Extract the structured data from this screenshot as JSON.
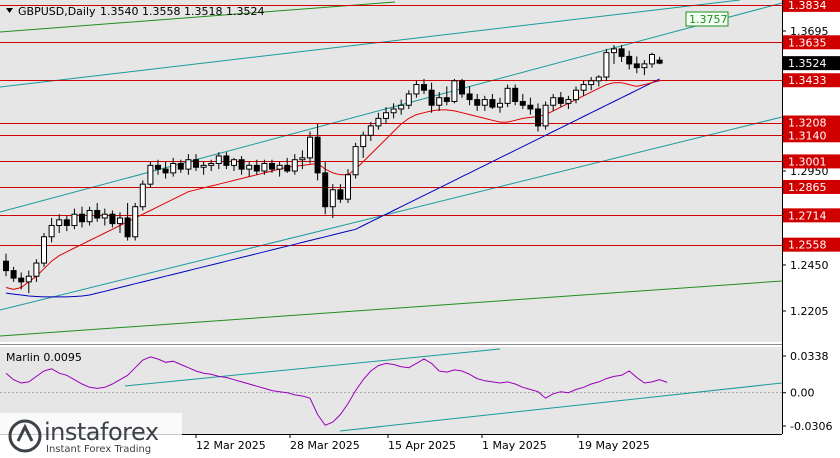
{
  "header": {
    "symbol": "GBPUSD,Daily",
    "ohlc": "1.3540 1.3558 1.3518 1.3524"
  },
  "indicator": {
    "label": "Marlin 0.0095",
    "levels": [
      "0.0338",
      "0.00",
      "-0.0306"
    ]
  },
  "price_axis": {
    "labels": [
      "1.3695",
      "1.2950",
      "1.2450",
      "1.2205"
    ],
    "current_price": "1.3524"
  },
  "levels": [
    {
      "price": "1.3834",
      "color": "#d10000"
    },
    {
      "price": "1.3635",
      "color": "#d10000"
    },
    {
      "price": "1.3433",
      "color": "#d10000"
    },
    {
      "price": "1.3208",
      "color": "#d10000"
    },
    {
      "price": "1.3140",
      "color": "#d10000"
    },
    {
      "price": "1.3001",
      "color": "#d10000"
    },
    {
      "price": "1.2865",
      "color": "#d10000"
    },
    {
      "price": "1.2714",
      "color": "#d10000"
    },
    {
      "price": "1.2558",
      "color": "#d10000"
    }
  ],
  "channel_target": "1.3757",
  "date_axis": [
    "12 Mar 2025",
    "28 Mar 2025",
    "15 Apr 2025",
    "1 May 2025",
    "19 May 2025"
  ],
  "branding": {
    "logo": "instaforex",
    "tagline": "Instant Forex Trading"
  },
  "colors": {
    "background": "#e6e6e6",
    "bull": "#ffffff",
    "bear": "#000000",
    "red_ma": "#e00000",
    "blue_ma": "#0000c0",
    "channel": "#1a9a9a",
    "green_line": "#1f8f1f",
    "oscillator": "#9900bb",
    "level": "#d10000"
  },
  "chart_data": {
    "type": "candlestick",
    "ylim": [
      1.204,
      1.386
    ],
    "price_axis_labels": [
      1.3695,
      1.295,
      1.245,
      1.2205
    ],
    "levels": [
      1.3834,
      1.3635,
      1.3433,
      1.3208,
      1.314,
      1.3001,
      1.2865,
      1.2714,
      1.2558
    ],
    "target": 1.3757,
    "current": 1.3524,
    "candles": [
      [
        1.247,
        1.251,
        1.239,
        1.242
      ],
      [
        1.242,
        1.244,
        1.236,
        1.238
      ],
      [
        1.238,
        1.241,
        1.232,
        1.236
      ],
      [
        1.236,
        1.242,
        1.23,
        1.239
      ],
      [
        1.239,
        1.248,
        1.236,
        1.246
      ],
      [
        1.246,
        1.262,
        1.244,
        1.26
      ],
      [
        1.26,
        1.27,
        1.257,
        1.266
      ],
      [
        1.266,
        1.272,
        1.262,
        1.269
      ],
      [
        1.269,
        1.271,
        1.263,
        1.266
      ],
      [
        1.266,
        1.275,
        1.264,
        1.272
      ],
      [
        1.272,
        1.276,
        1.265,
        1.268
      ],
      [
        1.268,
        1.276,
        1.266,
        1.274
      ],
      [
        1.274,
        1.278,
        1.268,
        1.27
      ],
      [
        1.27,
        1.275,
        1.266,
        1.272
      ],
      [
        1.272,
        1.274,
        1.265,
        1.267
      ],
      [
        1.267,
        1.273,
        1.262,
        1.27
      ],
      [
        1.27,
        1.278,
        1.258,
        1.26
      ],
      [
        1.26,
        1.278,
        1.258,
        1.276
      ],
      [
        1.276,
        1.29,
        1.274,
        1.288
      ],
      [
        1.288,
        1.3,
        1.286,
        1.298
      ],
      [
        1.298,
        1.301,
        1.293,
        1.296
      ],
      [
        1.296,
        1.3,
        1.291,
        1.294
      ],
      [
        1.294,
        1.302,
        1.292,
        1.299
      ],
      [
        1.299,
        1.301,
        1.294,
        1.296
      ],
      [
        1.296,
        1.304,
        1.293,
        1.301
      ],
      [
        1.301,
        1.304,
        1.295,
        1.297
      ],
      [
        1.297,
        1.3,
        1.293,
        1.298
      ],
      [
        1.298,
        1.301,
        1.295,
        1.299
      ],
      [
        1.299,
        1.305,
        1.296,
        1.303
      ],
      [
        1.303,
        1.305,
        1.296,
        1.298
      ],
      [
        1.298,
        1.302,
        1.295,
        1.301
      ],
      [
        1.301,
        1.303,
        1.293,
        1.296
      ],
      [
        1.296,
        1.3,
        1.292,
        1.298
      ],
      [
        1.298,
        1.301,
        1.293,
        1.295
      ],
      [
        1.295,
        1.301,
        1.293,
        1.299
      ],
      [
        1.299,
        1.301,
        1.294,
        1.296
      ],
      [
        1.296,
        1.3,
        1.292,
        1.298
      ],
      [
        1.298,
        1.302,
        1.294,
        1.295
      ],
      [
        1.295,
        1.304,
        1.293,
        1.301
      ],
      [
        1.301,
        1.306,
        1.296,
        1.302
      ],
      [
        1.302,
        1.316,
        1.299,
        1.313
      ],
      [
        1.313,
        1.32,
        1.29,
        1.294
      ],
      [
        1.294,
        1.3,
        1.272,
        1.276
      ],
      [
        1.276,
        1.288,
        1.27,
        1.285
      ],
      [
        1.285,
        1.288,
        1.278,
        1.28
      ],
      [
        1.28,
        1.296,
        1.278,
        1.293
      ],
      [
        1.293,
        1.31,
        1.291,
        1.308
      ],
      [
        1.308,
        1.316,
        1.302,
        1.314
      ],
      [
        1.314,
        1.321,
        1.311,
        1.319
      ],
      [
        1.319,
        1.326,
        1.317,
        1.323
      ],
      [
        1.323,
        1.329,
        1.32,
        1.326
      ],
      [
        1.326,
        1.331,
        1.323,
        1.328
      ],
      [
        1.328,
        1.333,
        1.325,
        1.33
      ],
      [
        1.33,
        1.338,
        1.328,
        1.336
      ],
      [
        1.336,
        1.343,
        1.334,
        1.341
      ],
      [
        1.341,
        1.344,
        1.336,
        1.338
      ],
      [
        1.338,
        1.342,
        1.326,
        1.33
      ],
      [
        1.33,
        1.337,
        1.327,
        1.334
      ],
      [
        1.334,
        1.34,
        1.33,
        1.332
      ],
      [
        1.332,
        1.344,
        1.331,
        1.343
      ],
      [
        1.343,
        1.344,
        1.334,
        1.336
      ],
      [
        1.336,
        1.34,
        1.33,
        1.333
      ],
      [
        1.333,
        1.336,
        1.327,
        1.33
      ],
      [
        1.33,
        1.335,
        1.327,
        1.333
      ],
      [
        1.333,
        1.336,
        1.328,
        1.329
      ],
      [
        1.329,
        1.334,
        1.326,
        1.331
      ],
      [
        1.331,
        1.341,
        1.329,
        1.339
      ],
      [
        1.339,
        1.341,
        1.33,
        1.332
      ],
      [
        1.332,
        1.336,
        1.328,
        1.33
      ],
      [
        1.33,
        1.334,
        1.325,
        1.328
      ],
      [
        1.328,
        1.331,
        1.316,
        1.319
      ],
      [
        1.319,
        1.332,
        1.317,
        1.33
      ],
      [
        1.33,
        1.336,
        1.327,
        1.334
      ],
      [
        1.334,
        1.337,
        1.329,
        1.331
      ],
      [
        1.331,
        1.335,
        1.328,
        1.333
      ],
      [
        1.333,
        1.34,
        1.331,
        1.338
      ],
      [
        1.338,
        1.343,
        1.335,
        1.341
      ],
      [
        1.341,
        1.345,
        1.338,
        1.343
      ],
      [
        1.343,
        1.346,
        1.34,
        1.345
      ],
      [
        1.345,
        1.36,
        1.343,
        1.358
      ],
      [
        1.358,
        1.362,
        1.352,
        1.36
      ],
      [
        1.36,
        1.362,
        1.353,
        1.356
      ],
      [
        1.356,
        1.359,
        1.349,
        1.352
      ],
      [
        1.352,
        1.356,
        1.347,
        1.35
      ],
      [
        1.35,
        1.354,
        1.346,
        1.352
      ],
      [
        1.352,
        1.358,
        1.35,
        1.357
      ],
      [
        1.354,
        1.3558,
        1.3518,
        1.3524
      ]
    ],
    "red_ma": [
      1.233,
      1.232,
      1.233,
      1.236,
      1.239,
      1.243,
      1.247,
      1.25,
      1.252,
      1.254,
      1.256,
      1.258,
      1.26,
      1.262,
      1.264,
      1.266,
      1.268,
      1.27,
      1.272,
      1.274,
      1.276,
      1.278,
      1.28,
      1.282,
      1.284,
      1.285,
      1.286,
      1.287,
      1.288,
      1.289,
      1.29,
      1.291,
      1.292,
      1.293,
      1.294,
      1.295,
      1.296,
      1.297,
      1.2975,
      1.298,
      1.2985,
      1.299,
      1.296,
      1.294,
      1.293,
      1.293,
      1.296,
      1.3,
      1.304,
      1.308,
      1.312,
      1.316,
      1.32,
      1.323,
      1.325,
      1.326,
      1.327,
      1.3275,
      1.3275,
      1.327,
      1.326,
      1.325,
      1.324,
      1.323,
      1.322,
      1.321,
      1.321,
      1.322,
      1.323,
      1.3235,
      1.324,
      1.325,
      1.327,
      1.329,
      1.331,
      1.333,
      1.335,
      1.337,
      1.339,
      1.341,
      1.342,
      1.342,
      1.341,
      1.34,
      1.341,
      1.342,
      1.343
    ],
    "blue_ma": [
      1.23,
      1.2295,
      1.229,
      1.2285,
      1.2282,
      1.228,
      1.228,
      1.228,
      1.228,
      1.2282,
      1.2285,
      1.229,
      1.23,
      1.231,
      1.232,
      1.233,
      1.234,
      1.235,
      1.236,
      1.237,
      1.238,
      1.239,
      1.24,
      1.241,
      1.242,
      1.243,
      1.244,
      1.245,
      1.246,
      1.247,
      1.248,
      1.249,
      1.25,
      1.251,
      1.252,
      1.253,
      1.254,
      1.255,
      1.256,
      1.257,
      1.258,
      1.259,
      1.26,
      1.261,
      1.262,
      1.263,
      1.264,
      1.266,
      1.268,
      1.27,
      1.272,
      1.274,
      1.276,
      1.278,
      1.28,
      1.282,
      1.284,
      1.286,
      1.288,
      1.29,
      1.292,
      1.294,
      1.296,
      1.298,
      1.3,
      1.302,
      1.304,
      1.306,
      1.308,
      1.31,
      1.312,
      1.314,
      1.316,
      1.318,
      1.32,
      1.322,
      1.324,
      1.326,
      1.328,
      1.33,
      1.332,
      1.334,
      1.336,
      1.338,
      1.34,
      1.342,
      1.344
    ],
    "oscillator": {
      "ylim": [
        -0.0306,
        0.0338
      ],
      "labels": [
        0.0338,
        0.0,
        -0.0306
      ],
      "values": [
        0.018,
        0.012,
        0.009,
        0.01,
        0.015,
        0.02,
        0.022,
        0.018,
        0.016,
        0.012,
        0.008,
        0.005,
        0.004,
        0.005,
        0.008,
        0.012,
        0.016,
        0.023,
        0.03,
        0.033,
        0.031,
        0.028,
        0.029,
        0.026,
        0.023,
        0.02,
        0.018,
        0.017,
        0.015,
        0.014,
        0.012,
        0.01,
        0.008,
        0.006,
        0.004,
        0.002,
        0.001,
        0.0,
        -0.002,
        -0.003,
        -0.005,
        -0.02,
        -0.03,
        -0.027,
        -0.02,
        -0.01,
        0.002,
        0.012,
        0.02,
        0.025,
        0.027,
        0.026,
        0.024,
        0.023,
        0.027,
        0.031,
        0.027,
        0.02,
        0.019,
        0.021,
        0.02,
        0.017,
        0.013,
        0.011,
        0.01,
        0.009,
        0.01,
        0.008,
        0.005,
        0.003,
        0.001,
        -0.005,
        -0.001,
        0.001,
        0.0,
        0.003,
        0.005,
        0.008,
        0.01,
        0.013,
        0.015,
        0.016,
        0.02,
        0.014,
        0.009,
        0.01,
        0.012,
        0.0095
      ]
    }
  }
}
